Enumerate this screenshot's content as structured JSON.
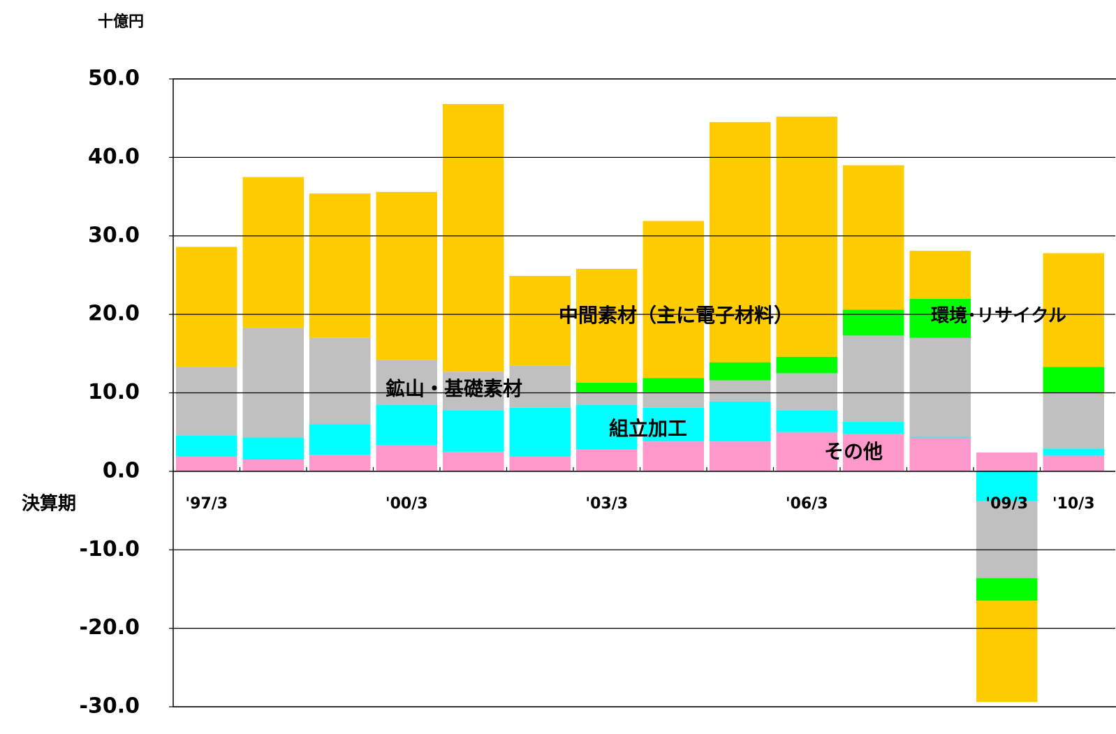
{
  "chart_data": {
    "type": "stacked_bar",
    "y_unit": "十億円",
    "x_label": "決算期",
    "categories": [
      "'97/3",
      null,
      null,
      "'00/3",
      null,
      null,
      "'03/3",
      null,
      null,
      "'06/3",
      null,
      null,
      "'09/3",
      "'10/3"
    ],
    "series": [
      {
        "name": "その他",
        "color": "#ff99cc",
        "values": [
          1.9,
          1.5,
          2.1,
          3.3,
          2.5,
          1.9,
          2.8,
          3.8,
          3.8,
          5.0,
          4.8,
          4.3,
          2.4,
          2.0
        ]
      },
      {
        "name": "組立加工",
        "color": "#00ffff",
        "values": [
          2.7,
          2.8,
          3.9,
          5.2,
          5.3,
          6.2,
          5.7,
          4.3,
          5.1,
          2.8,
          1.5,
          0.1,
          -3.8,
          0.9
        ]
      },
      {
        "name": "鉱山・基礎素材",
        "color": "#c0c0c0",
        "values": [
          8.7,
          14.0,
          11.0,
          5.7,
          4.9,
          5.4,
          1.6,
          2.0,
          2.7,
          4.7,
          11.0,
          12.6,
          -9.8,
          7.1
        ]
      },
      {
        "name": "環境･リサイクル",
        "color": "#00ff00",
        "values": [
          0,
          0,
          0,
          0,
          0,
          0,
          1.2,
          1.8,
          2.3,
          2.1,
          3.3,
          5.0,
          -2.9,
          3.3
        ]
      },
      {
        "name": "中間素材（主に電子材料）",
        "color": "#ffcc00",
        "values": [
          15.3,
          19.2,
          18.4,
          21.4,
          34.1,
          11.4,
          14.5,
          20.0,
          30.6,
          30.6,
          18.4,
          6.1,
          -12.9,
          14.5
        ]
      }
    ],
    "ylim": [
      -30,
      50
    ],
    "yticks": [
      {
        "value": -30,
        "label": "-30.0"
      },
      {
        "value": -20,
        "label": "-20.0"
      },
      {
        "value": -10,
        "label": "-10.0"
      },
      {
        "value": 0,
        "label": "0.0"
      },
      {
        "value": 10,
        "label": "10.0"
      },
      {
        "value": 20,
        "label": "20.0"
      },
      {
        "value": 30,
        "label": "30.0"
      },
      {
        "value": 40,
        "label": "40.0"
      },
      {
        "value": 50,
        "label": "50.0"
      }
    ],
    "grid": true
  }
}
